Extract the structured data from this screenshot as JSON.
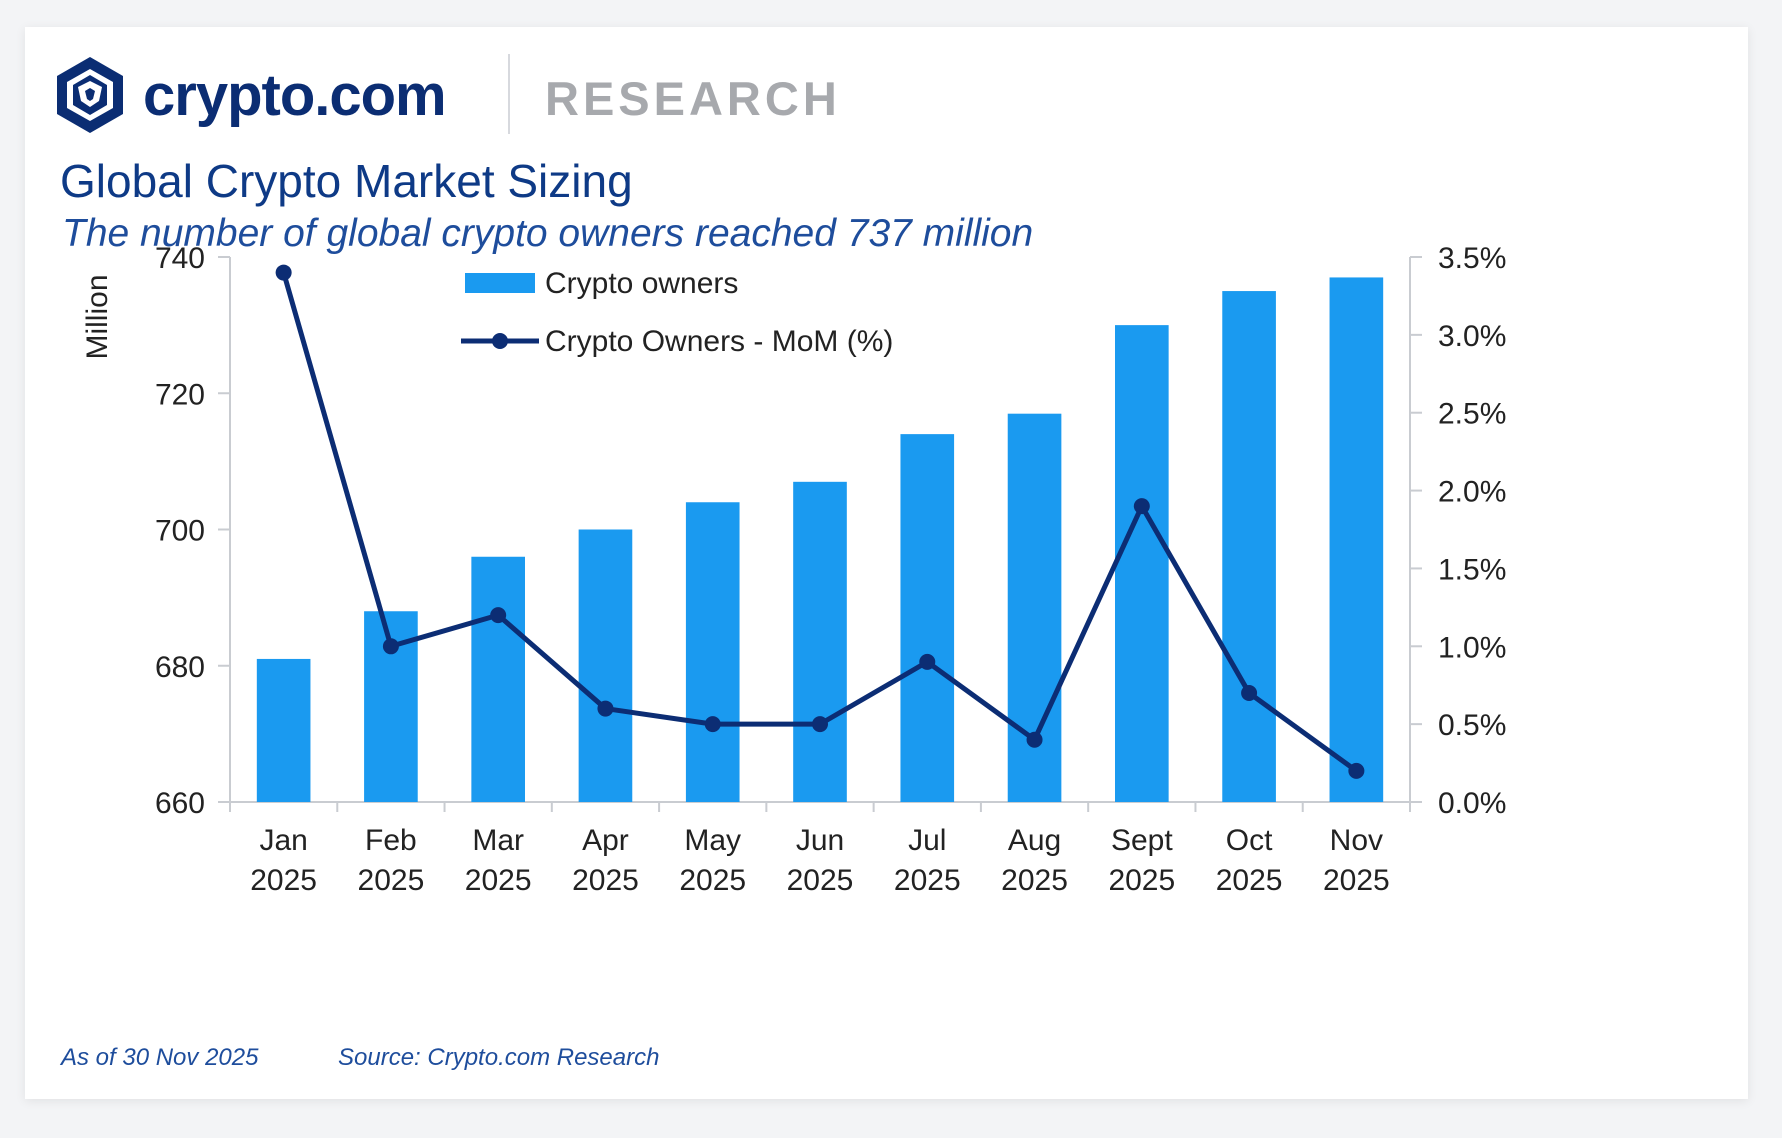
{
  "brand": {
    "name": "crypto.com",
    "section": "RESEARCH"
  },
  "title": "Global Crypto Market Sizing",
  "subtitle": "The number of global crypto owners reached 737 million",
  "footer": {
    "as_of": "As of 30 Nov 2025",
    "source": "Source: Crypto.com Research"
  },
  "colors": {
    "bar": "#1a9af0",
    "line": "#0c2d74",
    "title": "#0e3a86",
    "axis": "#c9ccd1"
  },
  "chart_data": {
    "type": "bar",
    "categories": [
      [
        "Jan",
        "2025"
      ],
      [
        "Feb",
        "2025"
      ],
      [
        "Mar",
        "2025"
      ],
      [
        "Apr",
        "2025"
      ],
      [
        "May",
        "2025"
      ],
      [
        "Jun",
        "2025"
      ],
      [
        "Jul",
        "2025"
      ],
      [
        "Aug",
        "2025"
      ],
      [
        "Sept",
        "2025"
      ],
      [
        "Oct",
        "2025"
      ],
      [
        "Nov",
        "2025"
      ]
    ],
    "series": [
      {
        "name": "Crypto owners",
        "type": "bar",
        "axis": "left",
        "values": [
          681,
          688,
          696,
          700,
          704,
          707,
          714,
          717,
          730,
          735,
          737
        ]
      },
      {
        "name": "Crypto Owners - MoM (%)",
        "type": "line",
        "axis": "right",
        "values": [
          3.4,
          1.0,
          1.2,
          0.6,
          0.5,
          0.5,
          0.9,
          0.4,
          1.9,
          0.7,
          0.2
        ]
      }
    ],
    "ylabel": "Million",
    "ylim": [
      660,
      740
    ],
    "yticks": [
      "660",
      "680",
      "700",
      "720",
      "740"
    ],
    "y2lim": [
      0,
      3.5
    ],
    "y2ticks": [
      "0.0%",
      "0.5%",
      "1.0%",
      "1.5%",
      "2.0%",
      "2.5%",
      "3.0%",
      "3.5%"
    ],
    "legend": "top-left-inside",
    "grid": false
  }
}
